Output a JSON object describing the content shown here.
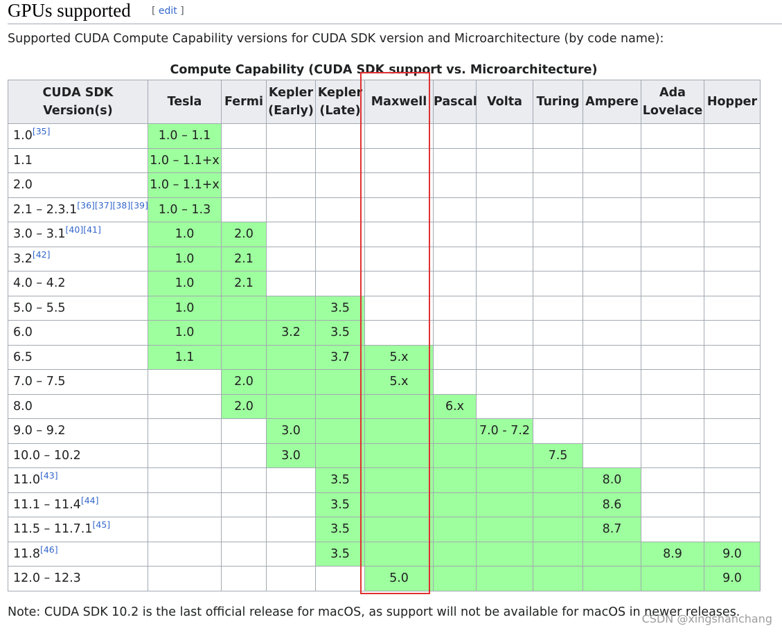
{
  "heading": {
    "title": "GPUs supported",
    "edit_open": "[ ",
    "edit": "edit",
    "edit_close": " ]"
  },
  "intro": "Supported CUDA Compute Capability versions for CUDA SDK version and Microarchitecture (by code name):",
  "table": {
    "caption": "Compute Capability (CUDA SDK support vs. Microarchitecture)",
    "headers": [
      [
        "CUDA SDK",
        "Version(s)"
      ],
      [
        "Tesla"
      ],
      [
        "Fermi"
      ],
      [
        "Kepler",
        "(Early)"
      ],
      [
        "Kepler",
        "(Late)"
      ],
      [
        "Maxwell"
      ],
      [
        "Pascal"
      ],
      [
        "Volta"
      ],
      [
        "Turing"
      ],
      [
        "Ampere"
      ],
      [
        "Ada",
        "Lovelace"
      ],
      [
        "Hopper"
      ]
    ],
    "rows": [
      {
        "version": "1.0",
        "refs": "[35]",
        "cells": [
          "1.0 – 1.1",
          "",
          "",
          "",
          "",
          "",
          "",
          "",
          "",
          "",
          ""
        ],
        "green": [
          1,
          0,
          0,
          0,
          0,
          0,
          0,
          0,
          0,
          0,
          0
        ]
      },
      {
        "version": "1.1",
        "refs": "",
        "cells": [
          "1.0 – 1.1+x",
          "",
          "",
          "",
          "",
          "",
          "",
          "",
          "",
          "",
          ""
        ],
        "green": [
          1,
          0,
          0,
          0,
          0,
          0,
          0,
          0,
          0,
          0,
          0
        ]
      },
      {
        "version": "2.0",
        "refs": "",
        "cells": [
          "1.0 – 1.1+x",
          "",
          "",
          "",
          "",
          "",
          "",
          "",
          "",
          "",
          ""
        ],
        "green": [
          1,
          0,
          0,
          0,
          0,
          0,
          0,
          0,
          0,
          0,
          0
        ]
      },
      {
        "version": "2.1 – 2.3.1",
        "refs": "[36][37][38][39]",
        "cells": [
          "1.0 – 1.3",
          "",
          "",
          "",
          "",
          "",
          "",
          "",
          "",
          "",
          ""
        ],
        "green": [
          1,
          0,
          0,
          0,
          0,
          0,
          0,
          0,
          0,
          0,
          0
        ]
      },
      {
        "version": "3.0 – 3.1",
        "refs": "[40][41]",
        "cells": [
          "1.0",
          "2.0",
          "",
          "",
          "",
          "",
          "",
          "",
          "",
          "",
          ""
        ],
        "green": [
          1,
          1,
          0,
          0,
          0,
          0,
          0,
          0,
          0,
          0,
          0
        ]
      },
      {
        "version": "3.2",
        "refs": "[42]",
        "cells": [
          "1.0",
          "2.1",
          "",
          "",
          "",
          "",
          "",
          "",
          "",
          "",
          ""
        ],
        "green": [
          1,
          1,
          0,
          0,
          0,
          0,
          0,
          0,
          0,
          0,
          0
        ]
      },
      {
        "version": "4.0 – 4.2",
        "refs": "",
        "cells": [
          "1.0",
          "2.1",
          "",
          "",
          "",
          "",
          "",
          "",
          "",
          "",
          ""
        ],
        "green": [
          1,
          1,
          0,
          0,
          0,
          0,
          0,
          0,
          0,
          0,
          0
        ]
      },
      {
        "version": "5.0 – 5.5",
        "refs": "",
        "cells": [
          "1.0",
          "",
          "",
          "3.5",
          "",
          "",
          "",
          "",
          "",
          "",
          ""
        ],
        "green": [
          1,
          1,
          1,
          1,
          0,
          0,
          0,
          0,
          0,
          0,
          0
        ]
      },
      {
        "version": "6.0",
        "refs": "",
        "cells": [
          "1.0",
          "",
          "3.2",
          "3.5",
          "",
          "",
          "",
          "",
          "",
          "",
          ""
        ],
        "green": [
          1,
          1,
          1,
          1,
          0,
          0,
          0,
          0,
          0,
          0,
          0
        ]
      },
      {
        "version": "6.5",
        "refs": "",
        "cells": [
          "1.1",
          "",
          "",
          "3.7",
          "5.x",
          "",
          "",
          "",
          "",
          "",
          ""
        ],
        "green": [
          1,
          1,
          1,
          1,
          1,
          0,
          0,
          0,
          0,
          0,
          0
        ]
      },
      {
        "version": "7.0 – 7.5",
        "refs": "",
        "cells": [
          "",
          "2.0",
          "",
          "",
          "5.x",
          "",
          "",
          "",
          "",
          "",
          ""
        ],
        "green": [
          0,
          1,
          1,
          1,
          1,
          0,
          0,
          0,
          0,
          0,
          0
        ]
      },
      {
        "version": "8.0",
        "refs": "",
        "cells": [
          "",
          "2.0",
          "",
          "",
          "",
          "6.x",
          "",
          "",
          "",
          "",
          ""
        ],
        "green": [
          0,
          1,
          1,
          1,
          1,
          1,
          0,
          0,
          0,
          0,
          0
        ]
      },
      {
        "version": "9.0 – 9.2",
        "refs": "",
        "cells": [
          "",
          "",
          "3.0",
          "",
          "",
          "",
          "7.0 - 7.2",
          "",
          "",
          "",
          ""
        ],
        "green": [
          0,
          0,
          1,
          1,
          1,
          1,
          1,
          0,
          0,
          0,
          0
        ]
      },
      {
        "version": "10.0 – 10.2",
        "refs": "",
        "cells": [
          "",
          "",
          "3.0",
          "",
          "",
          "",
          "",
          "7.5",
          "",
          "",
          ""
        ],
        "green": [
          0,
          0,
          1,
          1,
          1,
          1,
          1,
          1,
          0,
          0,
          0
        ]
      },
      {
        "version": "11.0",
        "refs": "[43]",
        "cells": [
          "",
          "",
          "",
          "3.5",
          "",
          "",
          "",
          "",
          "8.0",
          "",
          ""
        ],
        "green": [
          0,
          0,
          0,
          1,
          1,
          1,
          1,
          1,
          1,
          0,
          0
        ]
      },
      {
        "version": "11.1 – 11.4",
        "refs": "[44]",
        "cells": [
          "",
          "",
          "",
          "3.5",
          "",
          "",
          "",
          "",
          "8.6",
          "",
          ""
        ],
        "green": [
          0,
          0,
          0,
          1,
          1,
          1,
          1,
          1,
          1,
          0,
          0
        ]
      },
      {
        "version": "11.5 – 11.7.1",
        "refs": "[45]",
        "cells": [
          "",
          "",
          "",
          "3.5",
          "",
          "",
          "",
          "",
          "8.7",
          "",
          ""
        ],
        "green": [
          0,
          0,
          0,
          1,
          1,
          1,
          1,
          1,
          1,
          0,
          0
        ]
      },
      {
        "version": "11.8",
        "refs": "[46]",
        "cells": [
          "",
          "",
          "",
          "3.5",
          "",
          "",
          "",
          "",
          "",
          "8.9",
          "9.0"
        ],
        "green": [
          0,
          0,
          0,
          1,
          1,
          1,
          1,
          1,
          1,
          1,
          1
        ]
      },
      {
        "version": "12.0 – 12.3",
        "refs": "",
        "cells": [
          "",
          "",
          "",
          "",
          "5.0",
          "",
          "",
          "",
          "",
          "",
          "9.0"
        ],
        "green": [
          0,
          0,
          0,
          0,
          1,
          1,
          1,
          1,
          1,
          1,
          1
        ]
      }
    ]
  },
  "note": "Note: CUDA SDK 10.2 is the last official release for macOS, as support will not be available for macOS in newer releases.",
  "watermark": "CSDN @xingshanchang",
  "colors": {
    "supported": "#9eff9e",
    "header_bg": "#eaecf0",
    "highlight_box": "#e03030",
    "link": "#3366cc"
  }
}
